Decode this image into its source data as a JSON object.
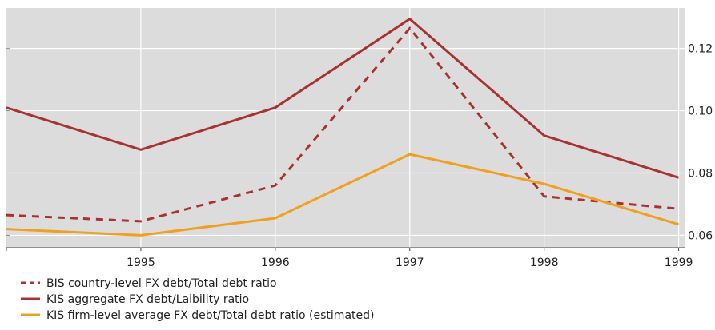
{
  "chart_data": {
    "type": "line",
    "title": "",
    "xlabel": "",
    "ylabel": "",
    "x": [
      1994,
      1995,
      1996,
      1997,
      1998,
      1999
    ],
    "x_ticks": [
      "1995",
      "1996",
      "1997",
      "1998",
      "1999"
    ],
    "x_tick_values": [
      1995,
      1996,
      1997,
      1998,
      1999
    ],
    "y_ticks": [
      "0.06",
      "0.08",
      "0.10",
      "0.12"
    ],
    "y_tick_values": [
      0.06,
      0.08,
      0.1,
      0.12
    ],
    "xlim": [
      1994,
      1999.05
    ],
    "ylim": [
      0.056,
      0.133
    ],
    "grid": true,
    "y_axis_side": "right",
    "legend_position": "bottom-left",
    "series": [
      {
        "name": "BIS country-level FX debt/Total debt ratio",
        "color": "#a83232",
        "dash": true,
        "values": [
          0.0665,
          0.0645,
          0.076,
          0.1265,
          0.0725,
          0.0685
        ]
      },
      {
        "name": "KIS aggregate FX debt/Laibility ratio",
        "color": "#a83232",
        "dash": false,
        "values": [
          0.101,
          0.0875,
          0.101,
          0.1295,
          0.092,
          0.0785
        ]
      },
      {
        "name": "KIS firm-level average FX debt/Total debt ratio (estimated)",
        "color": "#f0a020",
        "dash": false,
        "values": [
          0.062,
          0.06,
          0.0655,
          0.086,
          0.0765,
          0.0635
        ]
      }
    ]
  }
}
